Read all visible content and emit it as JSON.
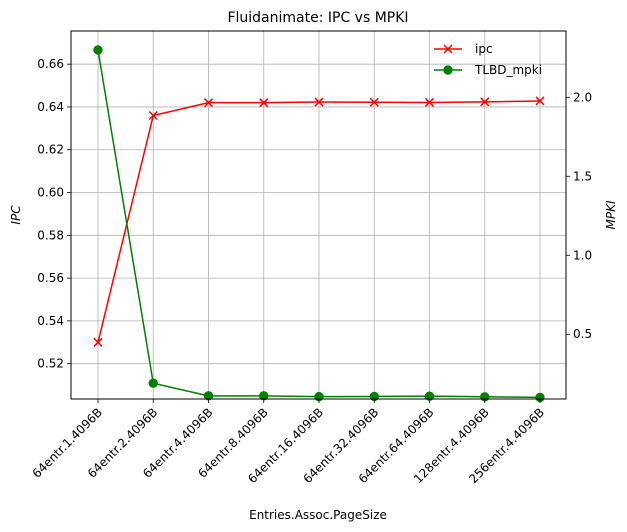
{
  "chart_data": {
    "type": "line",
    "title": "Fluidanimate: IPC vs MPKI",
    "xlabel": "Entries.Assoc.PageSize",
    "ylabel_left": "IPC",
    "ylabel_right": "MPKI",
    "categories": [
      "64entr.1.4096B",
      "64entr.2.4096B",
      "64entr.4.4096B",
      "64entr.8.4096B",
      "64entr.16.4096B",
      "64entr.32.4096B",
      "64entr.64.4096B",
      "128entr.4.4096B",
      "256entr.4.4096B"
    ],
    "series": [
      {
        "name": "ipc",
        "axis": "left",
        "color": "#ff0000",
        "marker": "x",
        "values": [
          0.53,
          0.636,
          0.642,
          0.642,
          0.6423,
          0.6422,
          0.6421,
          0.6424,
          0.6428
        ]
      },
      {
        "name": "TLBD_mpki",
        "axis": "right",
        "color": "#008000",
        "marker": "circle",
        "values": [
          2.3,
          0.19,
          0.11,
          0.11,
          0.105,
          0.106,
          0.108,
          0.104,
          0.1
        ]
      }
    ],
    "ylim_left": [
      0.5035,
      0.6755
    ],
    "ylim_right": [
      0.09,
      2.42
    ],
    "yticks_left": [
      "0.52",
      "0.54",
      "0.56",
      "0.58",
      "0.60",
      "0.62",
      "0.64",
      "0.66"
    ],
    "yticks_right": [
      "0.5",
      "1.0",
      "1.5",
      "2.0"
    ],
    "grid": true,
    "legend_position": "top-right"
  }
}
